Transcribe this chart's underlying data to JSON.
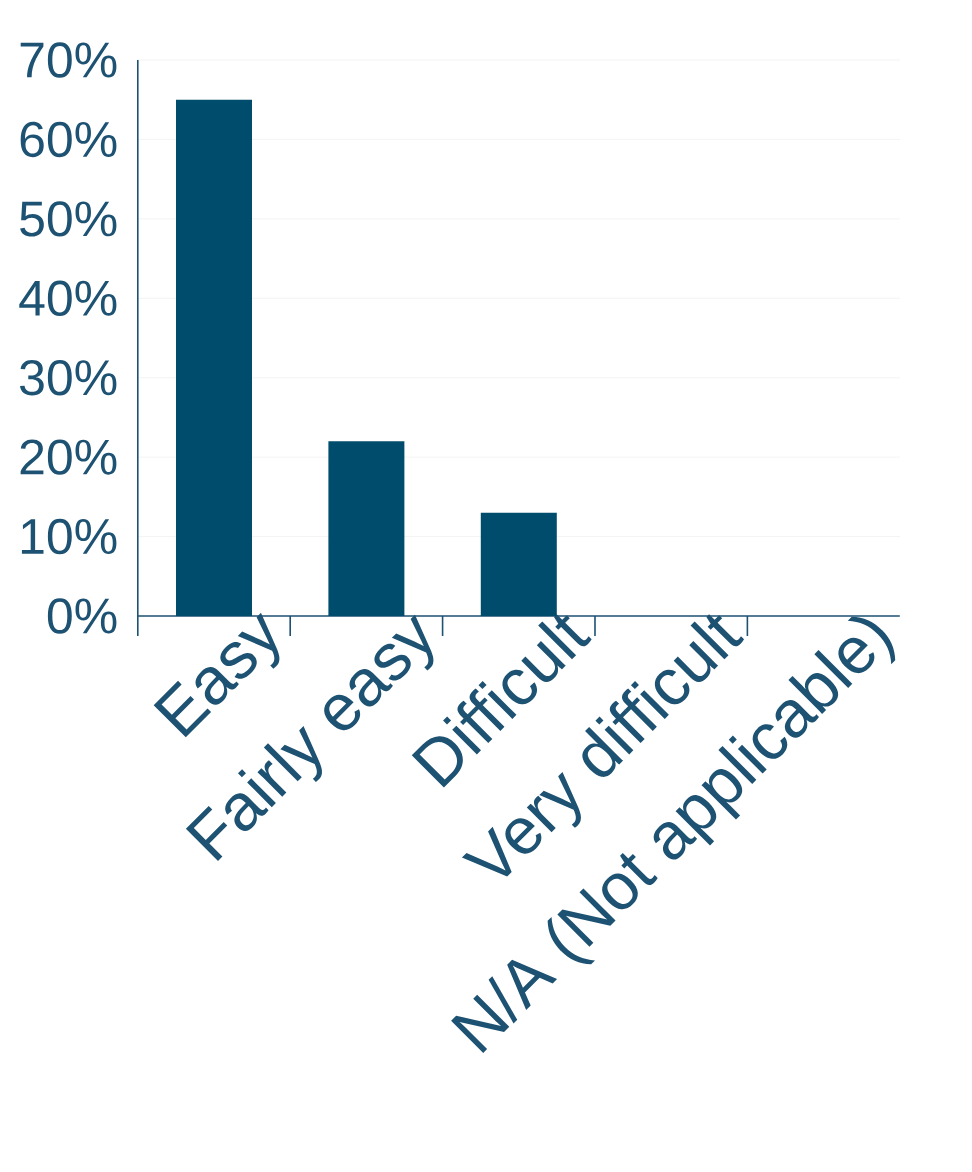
{
  "chart_data": {
    "type": "bar",
    "categories": [
      "Easy",
      "Fairly easy",
      "Difficult",
      "Very difficult",
      "N/A (Not applicable)"
    ],
    "values": [
      65,
      22,
      13,
      0,
      0
    ],
    "color": "#004c6d",
    "ylim": [
      0,
      70
    ],
    "yticks": [
      {
        "value": 0,
        "label": "0%"
      },
      {
        "value": 10,
        "label": "10%"
      },
      {
        "value": 20,
        "label": "20%"
      },
      {
        "value": 30,
        "label": "30%"
      },
      {
        "value": 40,
        "label": "40%"
      },
      {
        "value": 50,
        "label": "50%"
      },
      {
        "value": 60,
        "label": "60%"
      },
      {
        "value": 70,
        "label": "70%"
      }
    ],
    "grid": "y"
  }
}
